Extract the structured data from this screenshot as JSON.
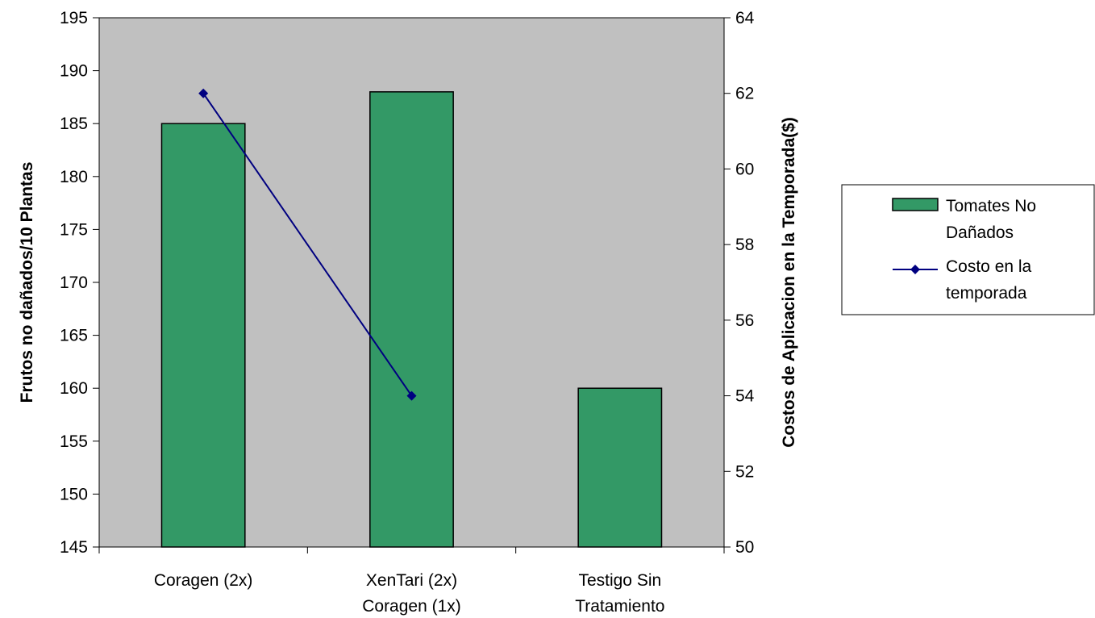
{
  "chart_data": {
    "type": "bar",
    "categories": [
      [
        "Coragen (2x)"
      ],
      [
        "XenTari (2x)",
        "Coragen (1x)"
      ],
      [
        "Testigo Sin",
        "Tratamiento"
      ]
    ],
    "series": [
      {
        "name": "Tomates No Dañados",
        "legend_lines": [
          "Tomates No",
          "Dañados"
        ],
        "type": "bar",
        "axis": "left",
        "values": [
          185,
          188,
          160
        ],
        "color": "#339966"
      },
      {
        "name": "Costo en la temporada",
        "legend_lines": [
          "Costo en la",
          "temporada"
        ],
        "type": "line",
        "axis": "right",
        "values": [
          62,
          54,
          null
        ],
        "color": "#000080"
      }
    ],
    "ylabel": "Frutos no dañados/10 Plantas",
    "ylabel_right": "Costos de Aplicacion en la Temporada($)",
    "ylim": [
      145,
      195
    ],
    "yticks": [
      145,
      150,
      155,
      160,
      165,
      170,
      175,
      180,
      185,
      190,
      195
    ],
    "ylim_right": [
      50,
      64
    ],
    "yticks_right": [
      50,
      52,
      54,
      56,
      58,
      60,
      62,
      64
    ],
    "plot_background": "#c0c0c0",
    "grid": false,
    "legend_position": "right"
  }
}
